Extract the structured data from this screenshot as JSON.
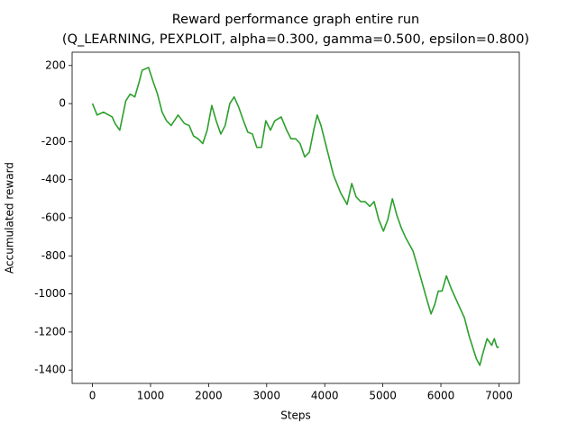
{
  "chart_data": {
    "type": "line",
    "title": "Reward performance graph entire run",
    "subtitle": "(Q_LEARNING, PEXPLOIT, alpha=0.300, gamma=0.500, epsilon=0.800)",
    "x_label": "Steps",
    "y_label": "Accumulated reward",
    "xlim": [
      -350,
      7350
    ],
    "xticks": [
      0,
      1000,
      2000,
      3000,
      4000,
      5000,
      6000,
      7000
    ],
    "ylim": [
      -1470,
      270
    ],
    "yticks": [
      -1400,
      -1200,
      -1000,
      -800,
      -600,
      -400,
      -200,
      0,
      200
    ],
    "grid": false,
    "series": [
      {
        "color": "#2ca02c",
        "x": [
          0,
          80,
          190,
          340,
          390,
          470,
          575,
          650,
          730,
          810,
          855,
          965,
          1040,
          1120,
          1200,
          1275,
          1355,
          1475,
          1585,
          1665,
          1740,
          1820,
          1900,
          1975,
          2055,
          2130,
          2210,
          2285,
          2365,
          2440,
          2520,
          2600,
          2675,
          2755,
          2830,
          2910,
          2985,
          3065,
          3140,
          3250,
          3345,
          3420,
          3500,
          3575,
          3655,
          3735,
          3810,
          3870,
          3935,
          4030,
          4150,
          4275,
          4385,
          4465,
          4540,
          4620,
          4695,
          4775,
          4850,
          4930,
          5010,
          5085,
          5165,
          5240,
          5320,
          5395,
          5520,
          5630,
          5740,
          5830,
          5895,
          5955,
          6020,
          6095,
          6175,
          6300,
          6405,
          6485,
          6610,
          6670,
          6720,
          6795,
          6875,
          6920,
          6965,
          7000
        ],
        "values": [
          0,
          -60,
          -45,
          -70,
          -105,
          -140,
          15,
          50,
          35,
          120,
          175,
          190,
          120,
          50,
          -45,
          -90,
          -115,
          -60,
          -105,
          -115,
          -170,
          -185,
          -210,
          -140,
          -10,
          -90,
          -160,
          -115,
          0,
          35,
          -20,
          -90,
          -150,
          -160,
          -230,
          -230,
          -90,
          -140,
          -90,
          -70,
          -140,
          -185,
          -185,
          -210,
          -280,
          -255,
          -140,
          -60,
          -115,
          -230,
          -375,
          -470,
          -530,
          -420,
          -490,
          -515,
          -515,
          -540,
          -515,
          -610,
          -670,
          -610,
          -500,
          -585,
          -655,
          -705,
          -775,
          -890,
          -1010,
          -1105,
          -1055,
          -985,
          -985,
          -905,
          -970,
          -1055,
          -1125,
          -1220,
          -1340,
          -1375,
          -1315,
          -1235,
          -1270,
          -1235,
          -1280,
          -1280
        ]
      }
    ]
  }
}
